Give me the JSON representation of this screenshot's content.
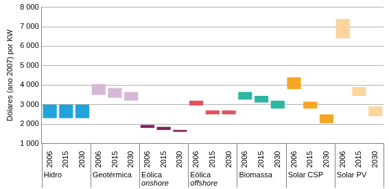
{
  "chart_data": {
    "type": "floating_bar",
    "y_label": "Dólares (ano 2007) por KW",
    "ylim": [
      1000,
      8000
    ],
    "yticks": [
      {
        "value": 1000,
        "label": "1 000"
      },
      {
        "value": 2000,
        "label": "2 000"
      },
      {
        "value": 3000,
        "label": "3 000"
      },
      {
        "value": 4000,
        "label": "4 000"
      },
      {
        "value": 5000,
        "label": "5 000"
      },
      {
        "value": 6000,
        "label": "6 000"
      },
      {
        "value": 7000,
        "label": "7 000"
      },
      {
        "value": 8000,
        "label": "8 000"
      }
    ],
    "grid": true,
    "groups": [
      {
        "label": [
          "Hidro"
        ],
        "color": "#1fa3dc",
        "categories": [
          "2006",
          "2015",
          "2030"
        ],
        "values": [
          [
            2300,
            3000
          ],
          [
            2300,
            3000
          ],
          [
            2300,
            3000
          ]
        ]
      },
      {
        "label": [
          "Geotérmica"
        ],
        "color": "#d6b8d6",
        "categories": [
          "2006",
          "2015",
          "2030"
        ],
        "values": [
          [
            3500,
            4050
          ],
          [
            3350,
            3850
          ],
          [
            3200,
            3650
          ]
        ]
      },
      {
        "label": [
          "Eólica",
          "onshore"
        ],
        "color": "#7d1f5c",
        "categories": [
          "2006",
          "2015",
          "2030"
        ],
        "values": [
          [
            1800,
            1950
          ],
          [
            1700,
            1850
          ],
          [
            1600,
            1700
          ]
        ]
      },
      {
        "label": [
          "Eólica",
          "offshore"
        ],
        "color": "#e2525e",
        "categories": [
          "2006",
          "2015",
          "2030"
        ],
        "values": [
          [
            2950,
            3200
          ],
          [
            2500,
            2700
          ],
          [
            2500,
            2700
          ]
        ]
      },
      {
        "label": [
          "Biomassa"
        ],
        "color": "#2db7a2",
        "categories": [
          "2006",
          "2015",
          "2030"
        ],
        "values": [
          [
            3250,
            3650
          ],
          [
            3100,
            3450
          ],
          [
            2800,
            3200
          ]
        ]
      },
      {
        "label": [
          "Solar CSP"
        ],
        "color": "#f5a623",
        "categories": [
          "2006",
          "2015",
          "2030"
        ],
        "values": [
          [
            3800,
            4400
          ],
          [
            2800,
            3150
          ],
          [
            2050,
            2500
          ]
        ]
      },
      {
        "label": [
          "Solar PV"
        ],
        "color": "#fcd59c",
        "categories": [
          "2006",
          "2015",
          "2030"
        ],
        "values": [
          [
            6400,
            7400
          ],
          [
            3450,
            3900
          ],
          [
            2400,
            2900
          ]
        ]
      }
    ]
  }
}
